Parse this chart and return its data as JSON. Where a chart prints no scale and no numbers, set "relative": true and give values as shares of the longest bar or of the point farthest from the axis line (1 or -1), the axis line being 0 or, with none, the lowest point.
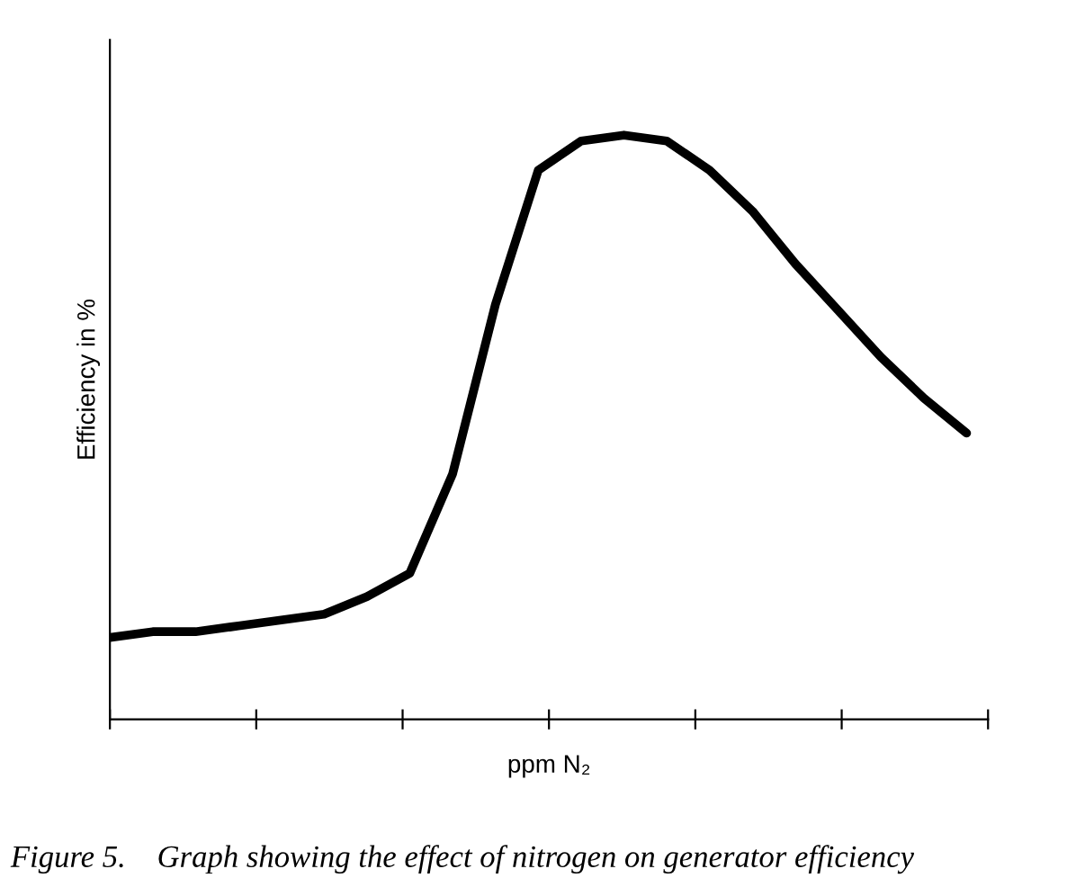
{
  "chart_data": {
    "type": "line",
    "relative": true,
    "xlabel": "ppm N₂",
    "ylabel": "Efficiency in %",
    "tick_labels": false,
    "grid": false,
    "legend": false,
    "marker": "none",
    "line_style": "solid",
    "categories": [
      null,
      null,
      null,
      null,
      null,
      null,
      null,
      null,
      null,
      null,
      null,
      null,
      null,
      null,
      null,
      null,
      null,
      null,
      null,
      null,
      null
    ],
    "series": [
      {
        "color": "#000000",
        "values": [
          0.14,
          0.15,
          0.15,
          0.16,
          0.17,
          0.18,
          0.21,
          0.25,
          0.42,
          0.71,
          0.94,
          0.99,
          1,
          0.99,
          0.94,
          0.87,
          0.78,
          0.7,
          0.62,
          0.55,
          0.49
        ]
      }
    ],
    "annotations": [
      "Figure 5.    Graph showing the effect of nitrogen on generator efficiency"
    ]
  }
}
